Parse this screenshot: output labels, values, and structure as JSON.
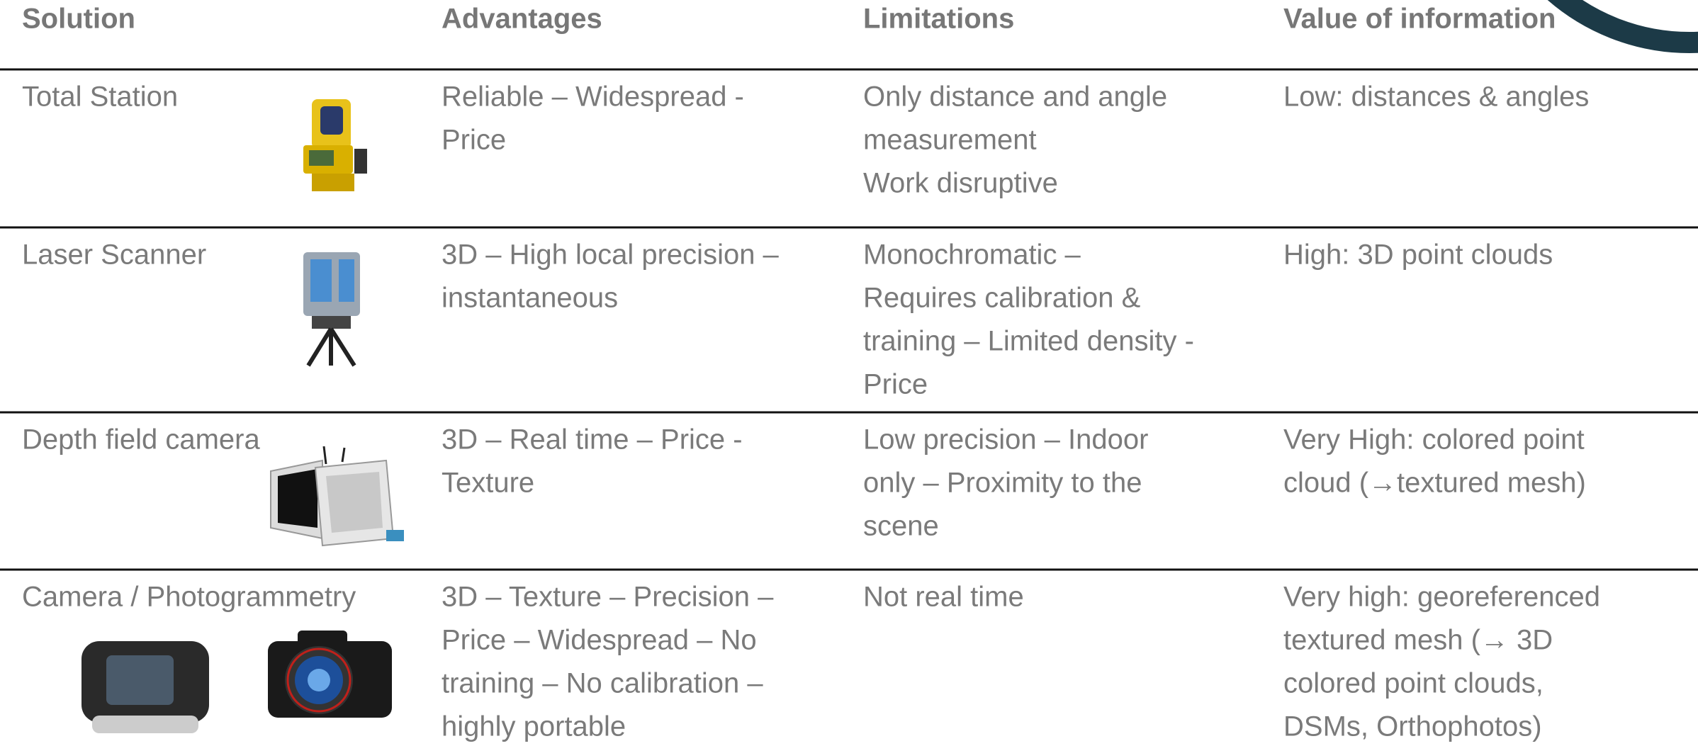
{
  "table": {
    "headers": [
      "Solution",
      "Advantages",
      "Limitations",
      "Value of information"
    ],
    "rows": [
      {
        "solution": [
          "Total Station"
        ],
        "advantages": [
          "Reliable – Widespread -",
          "Price"
        ],
        "limitations": [
          "Only distance and angle",
          "measurement",
          "Work disruptive"
        ],
        "value": [
          "Low: distances & angles"
        ]
      },
      {
        "solution": [
          "Laser Scanner"
        ],
        "advantages": [
          "3D – High local precision –",
          "instantaneous"
        ],
        "limitations": [
          "Monochromatic –",
          "Requires calibration &",
          "training – Limited density -",
          "Price"
        ],
        "value": [
          "High: 3D point clouds"
        ]
      },
      {
        "solution": [
          "Depth field camera"
        ],
        "advantages": [
          "3D – Real time – Price -",
          "Texture"
        ],
        "limitations": [
          "Low precision – Indoor",
          "only – Proximity to the",
          "scene"
        ],
        "value": [
          "Very High: colored point",
          "cloud (→textured mesh)"
        ]
      },
      {
        "solution": [
          "Camera / Photogrammetry"
        ],
        "advantages": [
          "3D – Texture – Precision –",
          "Price – Widespread – No",
          "training – No calibration –",
          "highly portable"
        ],
        "limitations": [
          "Not real time"
        ],
        "value": [
          "Very high: georeferenced",
          "textured mesh (→ 3D",
          "colored point clouds,",
          "DSMs, Orthophotos)"
        ]
      }
    ]
  }
}
